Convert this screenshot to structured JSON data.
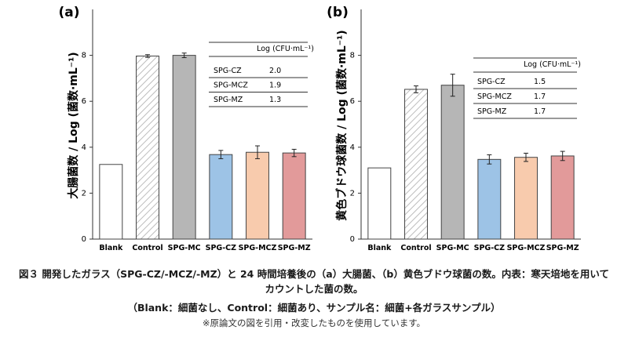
{
  "chart_data": [
    {
      "type": "bar",
      "panel_label": "(a)",
      "ylabel": "大腸菌数 / Log (菌数·mL⁻¹)",
      "xlabel": "",
      "ylim": [
        0,
        10
      ],
      "yticks": [
        0,
        2,
        4,
        6,
        8
      ],
      "categories": [
        "Blank",
        "Control",
        "SPG-MC",
        "SPG-CZ",
        "SPG-MCZ",
        "SPG-MZ"
      ],
      "values": [
        3.25,
        7.97,
        8.0,
        3.68,
        3.78,
        3.75
      ],
      "errors": [
        0,
        0.06,
        0.1,
        0.18,
        0.28,
        0.16
      ],
      "bar_styles": [
        "white",
        "hatched",
        "#b6b6b6",
        "#9dc3e6",
        "#f8cbad",
        "#e29a9a"
      ],
      "inset_table": {
        "header": "Log (CFU·mL⁻¹)",
        "rows": [
          [
            "SPG-CZ",
            "2.0"
          ],
          [
            "SPG-MCZ",
            "1.9"
          ],
          [
            "SPG-MZ",
            "1.3"
          ]
        ]
      }
    },
    {
      "type": "bar",
      "panel_label": "(b)",
      "ylabel": "黄色ブドウ球菌数 / Log (菌数·mL⁻¹)",
      "xlabel": "",
      "ylim": [
        0,
        10
      ],
      "yticks": [
        0,
        2,
        4,
        6,
        8
      ],
      "categories": [
        "Blank",
        "Control",
        "SPG-MC",
        "SPG-CZ",
        "SPG-MCZ",
        "SPG-MZ"
      ],
      "values": [
        3.1,
        6.52,
        6.7,
        3.47,
        3.56,
        3.62
      ],
      "errors": [
        0,
        0.15,
        0.48,
        0.2,
        0.18,
        0.2
      ],
      "bar_styles": [
        "white",
        "hatched",
        "#b6b6b6",
        "#9dc3e6",
        "#f8cbad",
        "#e29a9a"
      ],
      "inset_table": {
        "header": "Log (CFU·mL⁻¹)",
        "rows": [
          [
            "SPG-CZ",
            "1.5"
          ],
          [
            "SPG-MCZ",
            "1.7"
          ],
          [
            "SPG-MZ",
            "1.7"
          ]
        ]
      }
    }
  ],
  "caption": {
    "line1": "図３ 開発したガラス（SPG-CZ/-MCZ/-MZ）と 24 時間培養後の（a）大腸菌、（b）黄色ブドウ球菌の数。内表：寒天培地を用いて",
    "line2": "カウントした菌の数。",
    "legend_note": "（Blank：細菌なし、Control：細菌あり、サンプル名：細菌+各ガラスサンプル）",
    "source_note": "※原論文の図を引用・改変したものを使用しています。"
  }
}
